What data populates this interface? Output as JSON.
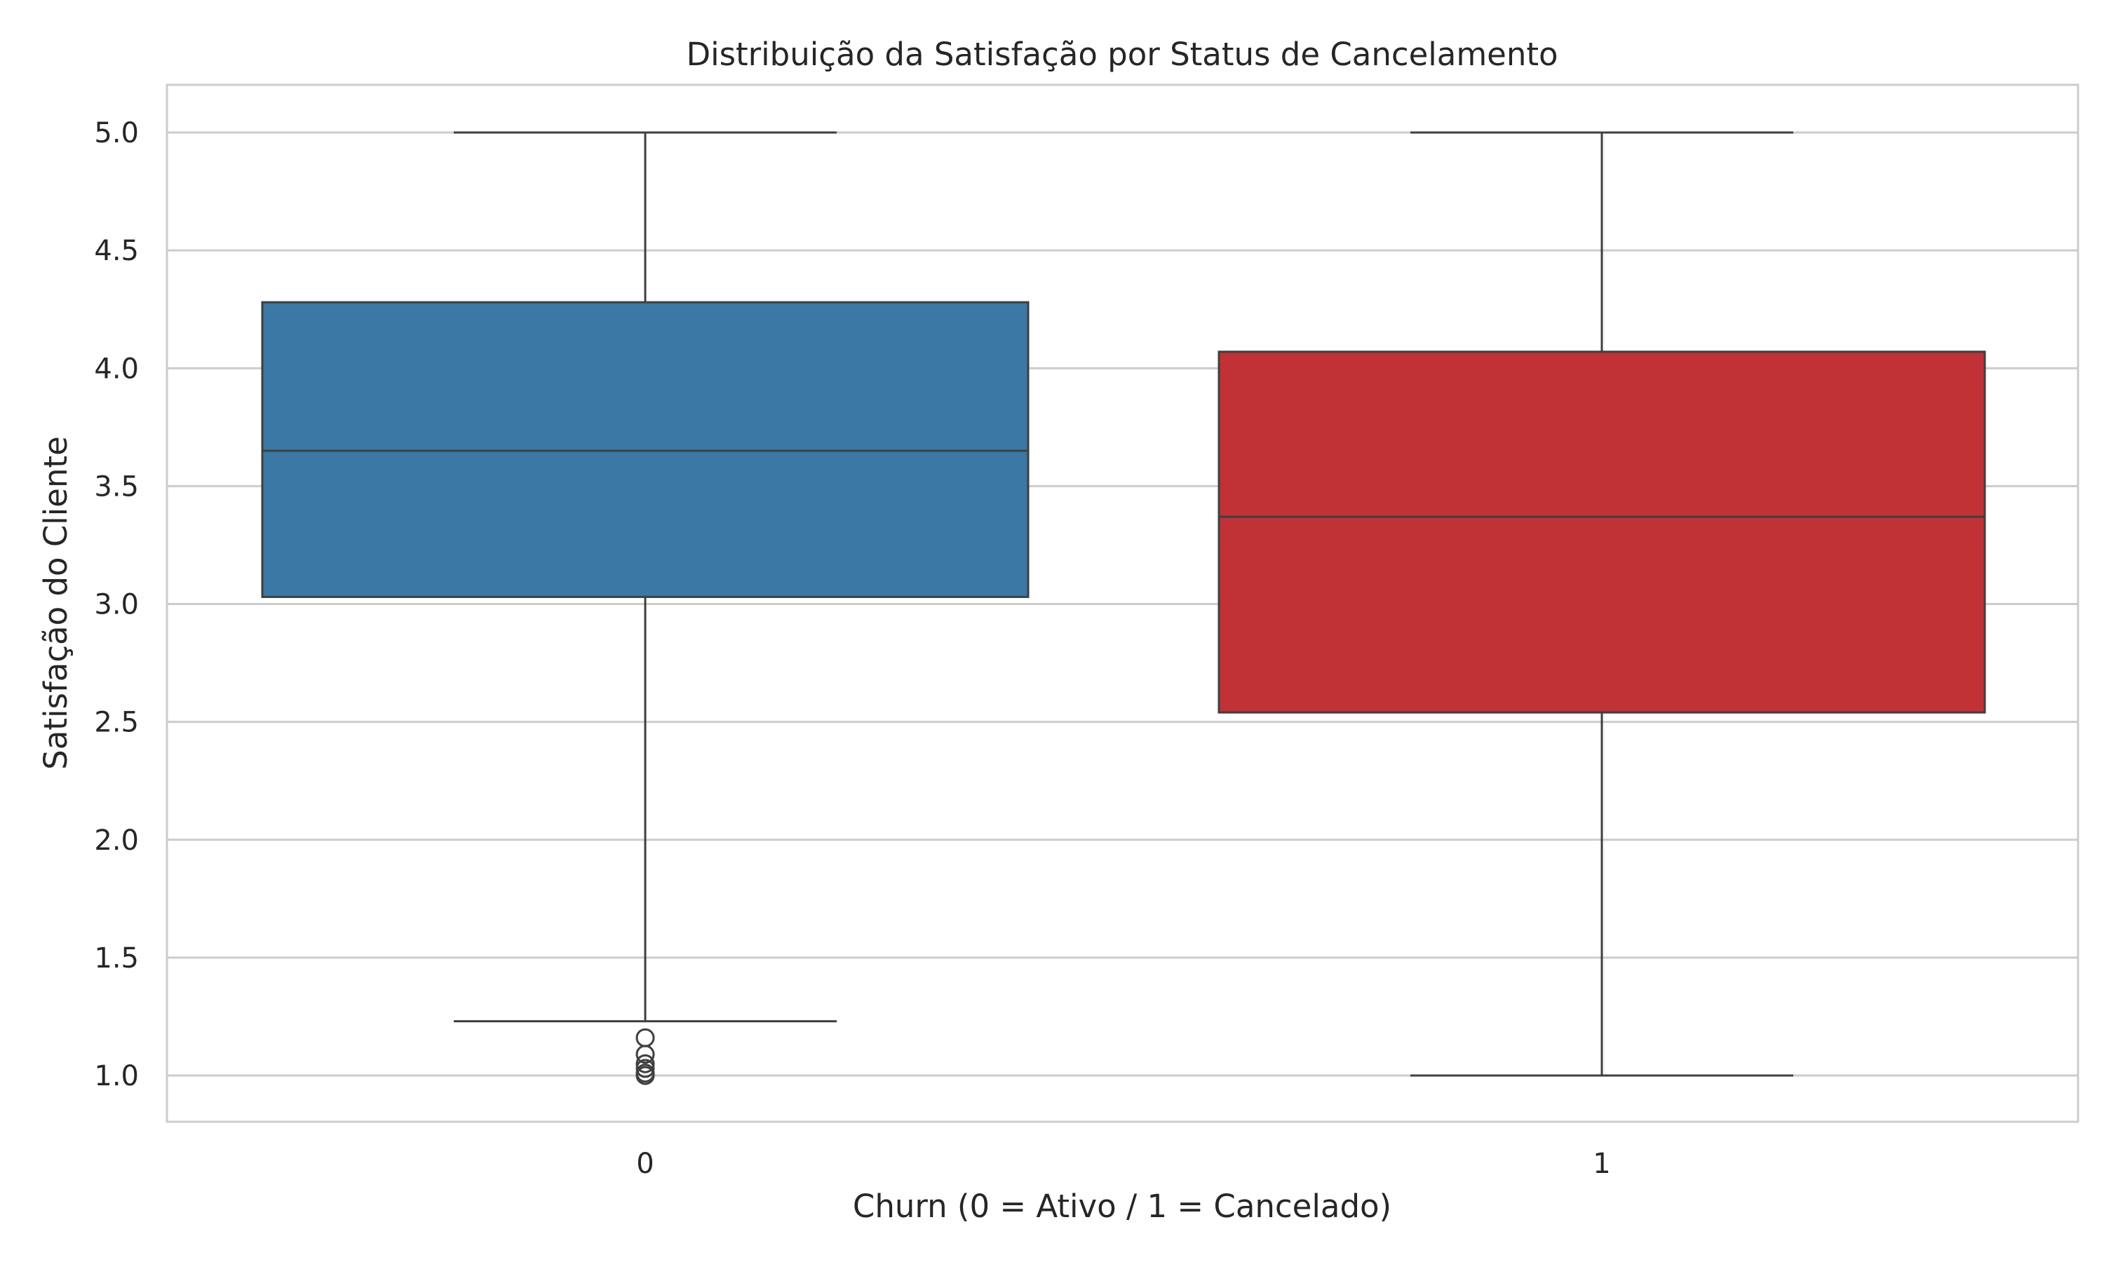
{
  "chart_data": {
    "type": "box",
    "title": "Distribuição da Satisfação por Status de Cancelamento",
    "xlabel": "Churn (0 = Ativo / 1 = Cancelado)",
    "ylabel": "Satisfação do Cliente",
    "categories": [
      "0",
      "1"
    ],
    "ylim": [
      0.8,
      5.2
    ],
    "yticks": [
      1.0,
      1.5,
      2.0,
      2.5,
      3.0,
      3.5,
      4.0,
      4.5,
      5.0
    ],
    "ytick_labels": [
      "1.0",
      "1.5",
      "2.0",
      "2.5",
      "3.0",
      "3.5",
      "4.0",
      "4.5",
      "5.0"
    ],
    "grid": true,
    "boxes": [
      {
        "category": "0",
        "whisker_low": 1.23,
        "q1": 3.03,
        "median": 3.65,
        "q3": 4.28,
        "whisker_high": 5.0,
        "outliers": [
          1.16,
          1.09,
          1.05,
          1.03,
          1.01,
          1.0
        ],
        "color": "#3b78a6"
      },
      {
        "category": "1",
        "whisker_low": 1.0,
        "q1": 2.54,
        "median": 3.37,
        "q3": 4.07,
        "whisker_high": 5.0,
        "outliers": [],
        "color": "#c03236"
      }
    ]
  }
}
